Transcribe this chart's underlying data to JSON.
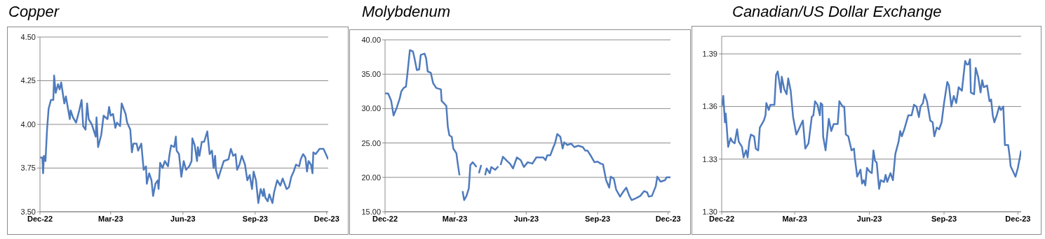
{
  "chart_data": [
    {
      "type": "line",
      "title": "Copper",
      "grid": "y",
      "xlim": [
        "2022-12-01",
        "2023-12-03"
      ],
      "ylim": [
        3.5,
        4.5
      ],
      "xticks": [
        {
          "value": "2022-12-01",
          "label": "Dec-22"
        },
        {
          "value": "2023-03-01",
          "label": "Mar-23"
        },
        {
          "value": "2023-06-01",
          "label": "Jun-23"
        },
        {
          "value": "2023-09-01",
          "label": "Sep-23"
        },
        {
          "value": "2023-12-01",
          "label": "Dec-23"
        }
      ],
      "yticks": [
        {
          "value": 3.5,
          "label": "3.50"
        },
        {
          "value": 3.75,
          "label": "3.75"
        },
        {
          "value": 4.0,
          "label": "4.00"
        },
        {
          "value": 4.25,
          "label": "4.25"
        },
        {
          "value": 4.5,
          "label": "4.50"
        }
      ],
      "x": [
        "2022-12-01",
        "2022-12-04",
        "2022-12-05",
        "2022-12-06",
        "2022-12-08",
        "2022-12-10",
        "2022-12-12",
        "2022-12-15",
        "2022-12-18",
        "2022-12-19",
        "2022-12-21",
        "2022-12-24",
        "2022-12-26",
        "2022-12-28",
        "2023-01-01",
        "2023-01-03",
        "2023-01-08",
        "2023-01-09",
        "2023-01-12",
        "2023-01-16",
        "2023-01-20",
        "2023-01-23",
        "2023-01-25",
        "2023-01-28",
        "2023-01-30",
        "2023-02-01",
        "2023-02-05",
        "2023-02-10",
        "2023-02-11",
        "2023-02-13",
        "2023-02-17",
        "2023-02-20",
        "2023-02-25",
        "2023-02-27",
        "2023-03-01",
        "2023-03-04",
        "2023-03-07",
        "2023-03-09",
        "2023-03-13",
        "2023-03-15",
        "2023-03-20",
        "2023-03-22",
        "2023-03-26",
        "2023-03-28",
        "2023-03-30",
        "2023-04-03",
        "2023-04-05",
        "2023-04-09",
        "2023-04-12",
        "2023-04-15",
        "2023-04-16",
        "2023-04-19",
        "2023-04-22",
        "2023-04-24",
        "2023-04-27",
        "2023-04-30",
        "2023-05-01",
        "2023-05-03",
        "2023-05-06",
        "2023-05-09",
        "2023-05-13",
        "2023-05-15",
        "2023-05-17",
        "2023-05-21",
        "2023-05-23",
        "2023-05-24",
        "2023-05-27",
        "2023-05-30",
        "2023-06-02",
        "2023-06-05",
        "2023-06-09",
        "2023-06-12",
        "2023-06-13",
        "2023-06-16",
        "2023-06-19",
        "2023-06-20",
        "2023-06-22",
        "2023-06-25",
        "2023-06-28",
        "2023-07-02",
        "2023-07-05",
        "2023-07-08",
        "2023-07-10",
        "2023-07-12",
        "2023-07-13",
        "2023-07-16",
        "2023-07-18",
        "2023-07-23",
        "2023-07-29",
        "2023-08-01",
        "2023-08-04",
        "2023-08-07",
        "2023-08-09",
        "2023-08-12",
        "2023-08-15",
        "2023-08-19",
        "2023-08-22",
        "2023-08-25",
        "2023-08-28",
        "2023-08-30",
        "2023-09-02",
        "2023-09-05",
        "2023-09-08",
        "2023-09-11",
        "2023-09-12",
        "2023-09-14",
        "2023-09-17",
        "2023-09-19",
        "2023-09-23",
        "2023-09-25",
        "2023-09-29",
        "2023-10-03",
        "2023-10-06",
        "2023-10-11",
        "2023-10-14",
        "2023-10-17",
        "2023-10-20",
        "2023-10-23",
        "2023-10-27",
        "2023-10-29",
        "2023-11-01",
        "2023-11-04",
        "2023-11-06",
        "2023-11-08",
        "2023-11-11",
        "2023-11-13",
        "2023-11-14",
        "2023-11-17",
        "2023-11-22",
        "2023-11-27",
        "2023-11-30",
        "2023-12-03"
      ],
      "series": [
        {
          "color": "#4f7bbd",
          "values": [
            3.81,
            3.81,
            3.72,
            3.82,
            3.79,
            3.97,
            4.09,
            4.14,
            4.14,
            4.28,
            4.18,
            4.23,
            4.2,
            4.24,
            4.12,
            4.16,
            4.03,
            4.08,
            4.04,
            4.01,
            4.08,
            4.14,
            3.99,
            3.97,
            4.12,
            4.03,
            4.0,
            3.93,
            4.04,
            3.87,
            3.94,
            4.05,
            4.03,
            4.1,
            4.05,
            4.06,
            3.98,
            4.01,
            3.99,
            4.12,
            4.06,
            4.01,
            3.97,
            3.84,
            3.89,
            3.89,
            3.85,
            3.89,
            3.74,
            3.76,
            3.66,
            3.72,
            3.68,
            3.59,
            3.66,
            3.68,
            3.63,
            3.78,
            3.75,
            3.79,
            3.76,
            3.83,
            3.88,
            3.87,
            3.93,
            3.85,
            3.83,
            3.7,
            3.79,
            3.74,
            3.76,
            3.79,
            3.92,
            3.88,
            3.79,
            3.87,
            3.82,
            3.9,
            3.9,
            3.96,
            3.83,
            3.85,
            3.75,
            3.82,
            3.74,
            3.69,
            3.72,
            3.79,
            3.8,
            3.86,
            3.82,
            3.83,
            3.74,
            3.77,
            3.82,
            3.77,
            3.68,
            3.71,
            3.63,
            3.73,
            3.68,
            3.55,
            3.63,
            3.59,
            3.63,
            3.58,
            3.56,
            3.6,
            3.55,
            3.61,
            3.68,
            3.65,
            3.69,
            3.63,
            3.64,
            3.7,
            3.73,
            3.77,
            3.76,
            3.8,
            3.83,
            3.81,
            3.73,
            3.79,
            3.77,
            3.72,
            3.84,
            3.83,
            3.86,
            3.86,
            3.83,
            3.8
          ]
        }
      ]
    },
    {
      "type": "line",
      "title": "Molybdenum",
      "grid": "y",
      "xlim": [
        "2022-12-01",
        "2023-12-04"
      ],
      "ylim": [
        15,
        40
      ],
      "xticks": [
        {
          "value": "2022-12-01",
          "label": "Dec-22"
        },
        {
          "value": "2023-03-01",
          "label": "Mar-23"
        },
        {
          "value": "2023-06-01",
          "label": "Jun-23"
        },
        {
          "value": "2023-09-01",
          "label": "Sep-23"
        },
        {
          "value": "2023-12-01",
          "label": "Dec-23"
        }
      ],
      "yticks": [
        {
          "value": 15,
          "label": "15.00"
        },
        {
          "value": 20,
          "label": "20.00"
        },
        {
          "value": 25,
          "label": "25.00"
        },
        {
          "value": 30,
          "label": "30.00"
        },
        {
          "value": 35,
          "label": "35.00"
        },
        {
          "value": 40,
          "label": "40.00"
        }
      ],
      "x": [
        "2022-12-01",
        "2022-12-05",
        "2022-12-09",
        "2022-12-12",
        "2022-12-16",
        "2022-12-20",
        "2022-12-22",
        "2022-12-25",
        "2022-12-28",
        "2022-12-30",
        "2023-01-02",
        "2023-01-06",
        "2023-01-08",
        "2023-01-11",
        "2023-01-14",
        "2023-01-16",
        "2023-01-21",
        "2023-01-23",
        "2023-01-25",
        "2023-01-29",
        "2023-02-01",
        "2023-02-05",
        "2023-02-11",
        "2023-02-12",
        "2023-02-14",
        "2023-02-18",
        "2023-02-20",
        "2023-02-22",
        "2023-02-25",
        "2023-02-27",
        "2023-03-03",
        "2023-03-05",
        "2023-03-07",
        "2023-03-09",
        "2023-03-11",
        "2023-03-13",
        "2023-03-16",
        "2023-03-19",
        "2023-03-21",
        "2023-03-24",
        "2023-03-29",
        "2023-03-31",
        "2023-04-01",
        "2023-04-04",
        "2023-04-07",
        "2023-04-09",
        "2023-04-11",
        "2023-04-15",
        "2023-04-17",
        "2023-04-22",
        "2023-04-26",
        "2023-04-28",
        "2023-04-29",
        "2023-05-02",
        "2023-05-08",
        "2023-05-11",
        "2023-05-15",
        "2023-05-20",
        "2023-05-25",
        "2023-05-29",
        "2023-06-03",
        "2023-06-09",
        "2023-06-14",
        "2023-06-23",
        "2023-06-26",
        "2023-06-28",
        "2023-07-02",
        "2023-07-06",
        "2023-07-08",
        "2023-07-11",
        "2023-07-15",
        "2023-07-18",
        "2023-07-20",
        "2023-07-24",
        "2023-07-29",
        "2023-08-02",
        "2023-08-07",
        "2023-08-13",
        "2023-08-16",
        "2023-08-19",
        "2023-08-24",
        "2023-08-28",
        "2023-09-01",
        "2023-09-05",
        "2023-09-08",
        "2023-09-12",
        "2023-09-16",
        "2023-09-18",
        "2023-09-22",
        "2023-09-25",
        "2023-09-30",
        "2023-10-04",
        "2023-10-08",
        "2023-10-12",
        "2023-10-15",
        "2023-10-21",
        "2023-10-26",
        "2023-10-31",
        "2023-11-04",
        "2023-11-06",
        "2023-11-10",
        "2023-11-15",
        "2023-11-17",
        "2023-11-21",
        "2023-11-22",
        "2023-11-27",
        "2023-11-29",
        "2023-12-04"
      ],
      "series": [
        {
          "color": "#4f7bbd",
          "values": [
            32.2,
            32.2,
            31.1,
            29.0,
            30.1,
            31.5,
            32.5,
            33.0,
            33.2,
            35.2,
            38.5,
            38.3,
            37.3,
            35.6,
            35.7,
            37.8,
            38.0,
            37.3,
            35.4,
            35.2,
            33.7,
            33.0,
            32.8,
            31.1,
            30.9,
            30.4,
            27.3,
            26.1,
            25.9,
            24.2,
            23.5,
            21.8,
            20.3,
            null,
            18.0,
            16.7,
            17.3,
            18.4,
            21.8,
            22.2,
            21.5,
            null,
            20.6,
            21.8,
            null,
            20.3,
            21.3,
            20.6,
            21.5,
            21.1,
            21.6,
            null,
            21.8,
            23.0,
            22.3,
            22.0,
            21.3,
            22.9,
            22.5,
            21.5,
            22.2,
            22.0,
            22.9,
            22.9,
            22.5,
            23.2,
            23.2,
            24.4,
            24.9,
            26.3,
            25.9,
            24.2,
            25.1,
            24.7,
            24.9,
            24.4,
            24.6,
            24.4,
            23.9,
            23.9,
            23.0,
            22.2,
            22.3,
            22.0,
            21.9,
            19.6,
            18.5,
            20.1,
            19.8,
            18.2,
            17.2,
            17.9,
            18.5,
            17.3,
            16.7,
            17.0,
            17.3,
            18.0,
            17.8,
            17.2,
            17.3,
            18.7,
            20.1,
            19.4,
            19.4,
            19.6,
            20.0,
            20.0
          ]
        }
      ]
    },
    {
      "type": "line",
      "title": "Canadian/US Dollar Exchange",
      "grid": "y",
      "xlim": [
        "2022-12-01",
        "2023-12-05"
      ],
      "ylim": [
        1.3,
        1.4
      ],
      "xticks": [
        {
          "value": "2022-12-01",
          "label": "Dec-22"
        },
        {
          "value": "2023-03-01",
          "label": "Mar-23"
        },
        {
          "value": "2023-06-01",
          "label": "Jun-23"
        },
        {
          "value": "2023-09-01",
          "label": "Sep-23"
        },
        {
          "value": "2023-12-01",
          "label": "Dec-23"
        }
      ],
      "yticks": [
        {
          "value": 1.3,
          "label": "1.30"
        },
        1.33,
        1.36,
        1.39
      ],
      "x": [
        "2022-12-01",
        "2022-12-03",
        "2022-12-05",
        "2022-12-06",
        "2022-12-09",
        "2022-12-12",
        "2022-12-14",
        "2022-12-17",
        "2022-12-20",
        "2022-12-22",
        "2022-12-26",
        "2022-12-28",
        "2022-12-31",
        "2023-01-02",
        "2023-01-04",
        "2023-01-06",
        "2023-01-10",
        "2023-01-12",
        "2023-01-15",
        "2023-01-17",
        "2023-01-22",
        "2023-01-24",
        "2023-01-25",
        "2023-01-28",
        "2023-01-30",
        "2023-02-04",
        "2023-02-06",
        "2023-02-08",
        "2023-02-12",
        "2023-02-13",
        "2023-02-16",
        "2023-02-19",
        "2023-02-21",
        "2023-02-24",
        "2023-02-27",
        "2023-03-03",
        "2023-03-06",
        "2023-03-11",
        "2023-03-14",
        "2023-03-18",
        "2023-03-22",
        "2023-03-24",
        "2023-03-26",
        "2023-03-29",
        "2023-04-01",
        "2023-04-02",
        "2023-04-04",
        "2023-04-05",
        "2023-04-08",
        "2023-04-12",
        "2023-04-15",
        "2023-04-18",
        "2023-04-23",
        "2023-04-25",
        "2023-04-29",
        "2023-05-01",
        "2023-05-03",
        "2023-05-06",
        "2023-05-10",
        "2023-05-13",
        "2023-05-14",
        "2023-05-17",
        "2023-05-21",
        "2023-05-23",
        "2023-05-25",
        "2023-05-27",
        "2023-05-29",
        "2023-06-01",
        "2023-06-04",
        "2023-06-06",
        "2023-06-08",
        "2023-06-10",
        "2023-06-13",
        "2023-06-15",
        "2023-06-19",
        "2023-06-21",
        "2023-06-23",
        "2023-06-27",
        "2023-06-30",
        "2023-07-03",
        "2023-07-07",
        "2023-07-09",
        "2023-07-11",
        "2023-07-14",
        "2023-07-19",
        "2023-07-23",
        "2023-07-26",
        "2023-07-29",
        "2023-08-01",
        "2023-08-03",
        "2023-08-06",
        "2023-08-08",
        "2023-08-11",
        "2023-08-15",
        "2023-08-18",
        "2023-08-20",
        "2023-08-23",
        "2023-08-26",
        "2023-08-29",
        "2023-09-01",
        "2023-09-05",
        "2023-09-07",
        "2023-09-10",
        "2023-09-13",
        "2023-09-16",
        "2023-09-19",
        "2023-09-23",
        "2023-09-27",
        "2023-09-29",
        "2023-10-01",
        "2023-10-03",
        "2023-10-04",
        "2023-10-08",
        "2023-10-10",
        "2023-10-13",
        "2023-10-16",
        "2023-10-18",
        "2023-10-20",
        "2023-10-24",
        "2023-10-27",
        "2023-10-29",
        "2023-10-31",
        "2023-11-02",
        "2023-11-05",
        "2023-11-08",
        "2023-11-10",
        "2023-11-13",
        "2023-11-15",
        "2023-11-19",
        "2023-11-21",
        "2023-11-22",
        "2023-11-28",
        "2023-12-01",
        "2023-12-05"
      ],
      "series": [
        {
          "color": "#4f7bbd",
          "values": [
            1.36,
            1.366,
            1.351,
            1.356,
            1.337,
            1.342,
            1.34,
            1.339,
            1.347,
            1.34,
            1.337,
            1.331,
            1.335,
            1.331,
            1.34,
            1.344,
            1.343,
            1.336,
            1.335,
            1.348,
            1.352,
            1.355,
            1.362,
            1.358,
            1.361,
            1.361,
            1.378,
            1.38,
            1.368,
            1.377,
            1.37,
            1.367,
            1.376,
            1.369,
            1.354,
            1.344,
            1.347,
            1.352,
            1.336,
            1.339,
            1.354,
            1.355,
            1.363,
            1.361,
            1.355,
            1.362,
            1.361,
            1.343,
            1.335,
            1.353,
            1.346,
            1.35,
            1.35,
            1.363,
            1.36,
            1.36,
            1.344,
            1.343,
            1.335,
            1.336,
            1.331,
            1.32,
            1.324,
            1.316,
            1.318,
            1.315,
            1.325,
            1.323,
            1.322,
            1.335,
            1.329,
            1.328,
            1.313,
            1.318,
            1.317,
            1.321,
            1.317,
            1.322,
            1.318,
            1.333,
            1.34,
            1.346,
            1.343,
            1.347,
            1.355,
            1.355,
            1.361,
            1.36,
            1.354,
            1.36,
            1.362,
            1.367,
            1.363,
            1.352,
            1.351,
            1.343,
            1.348,
            1.347,
            1.351,
            1.362,
            1.374,
            1.372,
            1.36,
            1.366,
            1.362,
            1.371,
            1.369,
            1.386,
            1.384,
            1.384,
            1.387,
            1.368,
            1.367,
            1.382,
            1.377,
            1.368,
            1.375,
            1.371,
            1.372,
            1.363,
            1.364,
            1.355,
            1.351,
            1.355,
            1.36,
            1.358,
            1.36,
            1.338,
            1.338,
            1.331,
            1.326,
            1.32,
            1.325,
            1.335
          ]
        }
      ]
    }
  ]
}
